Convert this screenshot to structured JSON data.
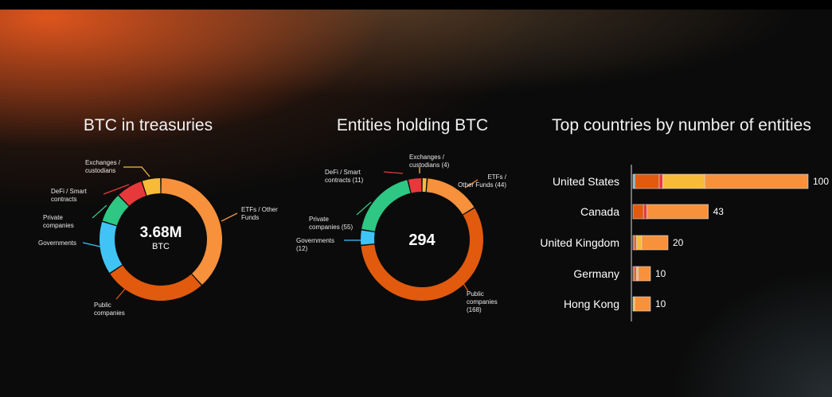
{
  "colors": {
    "etfs": "#f7913c",
    "public": "#e15a0e",
    "governments": "#3fc4f5",
    "private": "#2ec783",
    "defi": "#e8393a",
    "exchanges": "#f8bb39",
    "bar_outline": "#dcdcdc"
  },
  "chart_data": [
    {
      "type": "pie",
      "title": "BTC in treasuries",
      "center_value": "3.68M",
      "center_unit": "BTC",
      "slices": [
        {
          "key": "etfs",
          "label": "ETFs / Other Funds",
          "value": 38
        },
        {
          "key": "public",
          "label": "Public companies",
          "value": 27
        },
        {
          "key": "governments",
          "label": "Governments",
          "value": 14
        },
        {
          "key": "private",
          "label": "Private companies",
          "value": 8
        },
        {
          "key": "defi",
          "label": "DeFi / Smart contracts",
          "value": 7
        },
        {
          "key": "exchanges",
          "label": "Exchanges / custodians",
          "value": 5
        }
      ]
    },
    {
      "type": "pie",
      "title": "Entities holding BTC",
      "center_value": "294",
      "slices": [
        {
          "key": "exchanges",
          "label": "Exchanges / custodians (4)",
          "value": 4
        },
        {
          "key": "etfs",
          "label": "ETFs / Other Funds (44)",
          "value": 44
        },
        {
          "key": "public",
          "label": "Public companies (168)",
          "value": 168
        },
        {
          "key": "governments",
          "label": "Governments (12)",
          "value": 12
        },
        {
          "key": "private",
          "label": "Private companies (55)",
          "value": 55
        },
        {
          "key": "defi",
          "label": "DeFi / Smart contracts (11)",
          "value": 11
        }
      ]
    },
    {
      "type": "bar",
      "orientation": "horizontal",
      "stacked": true,
      "title": "Top countries by number of entities",
      "categories": [
        "United States",
        "Canada",
        "United Kingdom",
        "Germany",
        "Hong Kong"
      ],
      "totals": [
        100,
        43,
        20,
        10,
        10
      ],
      "series": [
        {
          "key": "governments",
          "values": [
            1,
            0,
            0,
            0,
            0
          ]
        },
        {
          "key": "public",
          "values": [
            14,
            6,
            1,
            1,
            0
          ]
        },
        {
          "key": "defi",
          "values": [
            2,
            2,
            1,
            1,
            0
          ]
        },
        {
          "key": "exchanges",
          "values": [
            24,
            0,
            3,
            1,
            1
          ]
        },
        {
          "key": "etfs",
          "values": [
            59,
            35,
            15,
            7,
            9
          ]
        }
      ]
    }
  ]
}
